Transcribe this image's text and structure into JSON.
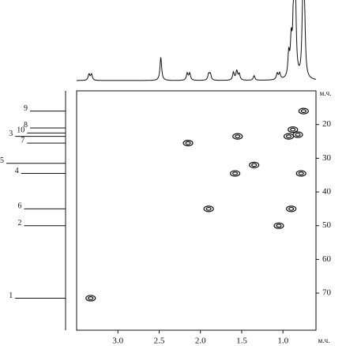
{
  "chart_data": {
    "type": "scatter",
    "x_label": "м.ч.",
    "y_label": "м.ч.",
    "xlim": [
      3.5,
      0.6
    ],
    "ylim": [
      10,
      81
    ],
    "y_inverted": true,
    "xticks": [
      {
        "value": 3,
        "label": "3.0"
      },
      2.5,
      {
        "value": 2,
        "label": "2.0"
      },
      1.5,
      {
        "value": 1,
        "label": "1.0"
      }
    ],
    "yticks": [
      20,
      30,
      40,
      50,
      60,
      70
    ],
    "color": "#111111",
    "x": [
      3.33,
      2.15,
      1.55,
      1.35,
      1.58,
      1.9,
      1.05,
      0.9,
      0.78,
      0.88,
      0.82,
      0.93,
      0.75
    ],
    "y": [
      71.5,
      25.5,
      23.5,
      32,
      34.5,
      45,
      50,
      45,
      34.5,
      21.5,
      23,
      23.5,
      16
    ],
    "proton_spectrum": {
      "shifts": [
        3.35,
        3.32,
        2.48,
        2.16,
        2.13,
        1.9,
        1.88,
        1.6,
        1.56,
        1.53,
        1.35,
        1.07,
        1.04,
        0.93,
        0.9,
        0.87,
        0.85,
        0.76,
        0.74
      ],
      "intensities": [
        8,
        8,
        30,
        9,
        9,
        8,
        8,
        10,
        12,
        8,
        6,
        8,
        8,
        30,
        45,
        95,
        100,
        90,
        85
      ]
    },
    "carbon_spectrum": {
      "labels": [
        "9",
        "8",
        "10",
        "3",
        "7",
        "5",
        "4",
        "6",
        "2",
        "1"
      ],
      "shifts": [
        16,
        21,
        22.5,
        23.5,
        25.5,
        31.5,
        34.5,
        45,
        50,
        71.5
      ],
      "intensities": [
        60,
        60,
        65,
        85,
        65,
        100,
        75,
        70,
        70,
        85
      ]
    }
  }
}
